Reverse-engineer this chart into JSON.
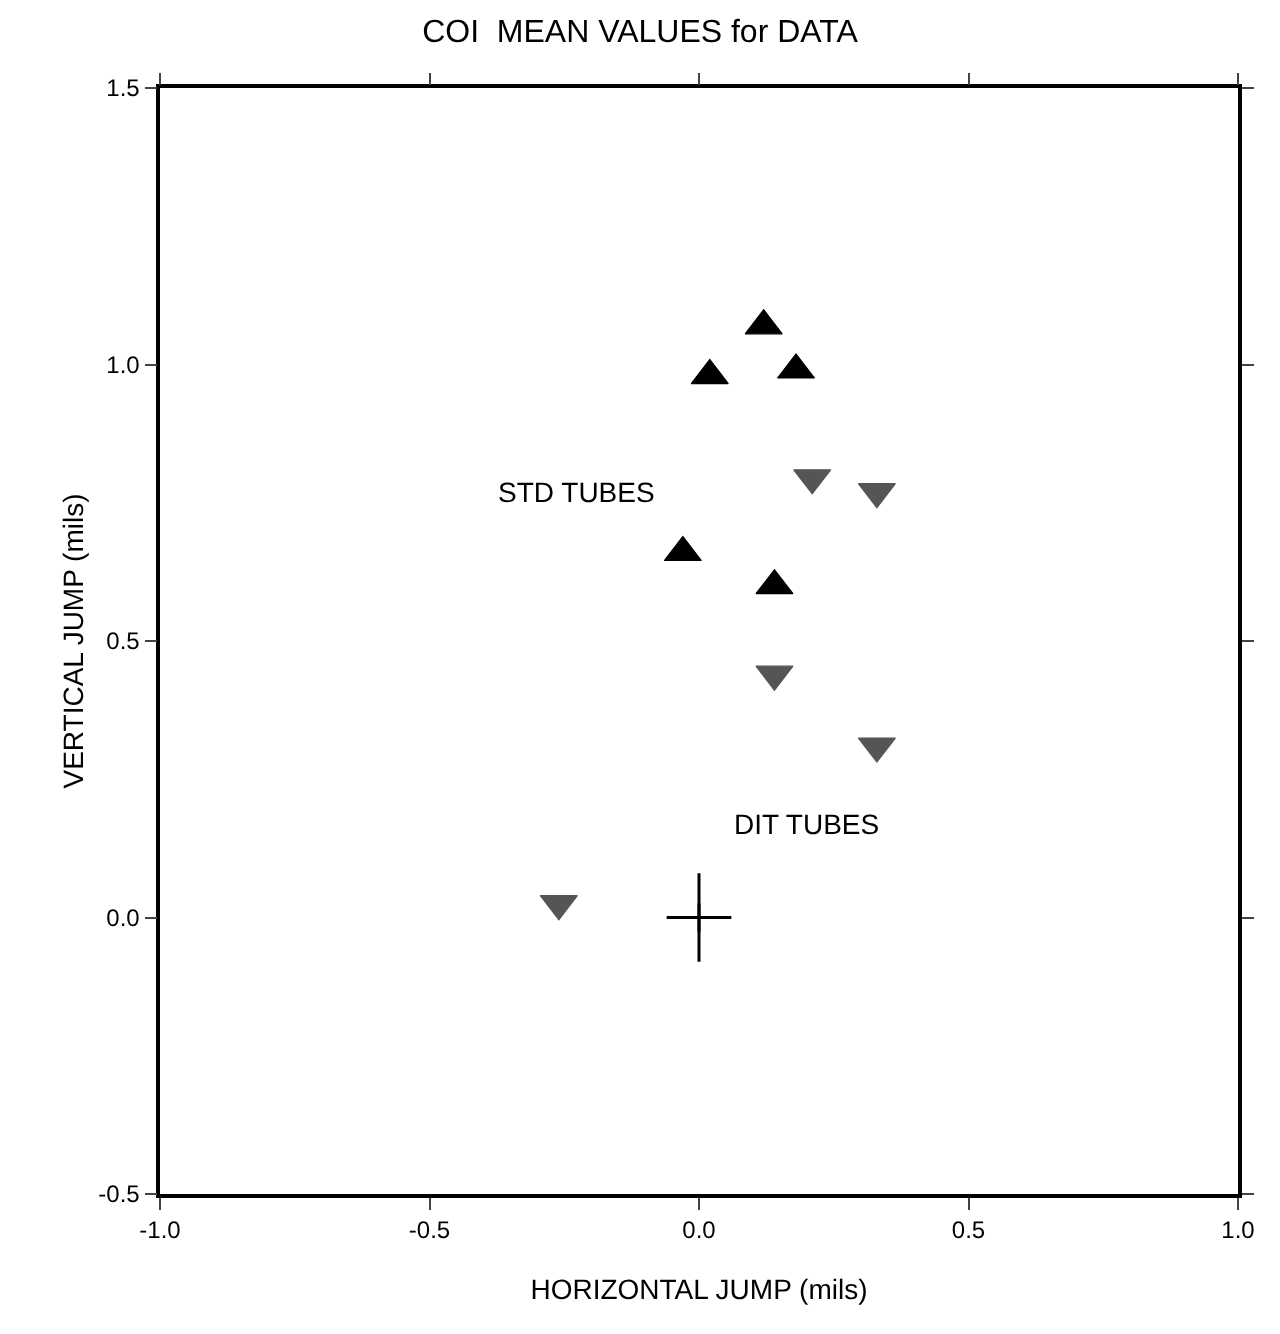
{
  "chart_data": {
    "type": "scatter",
    "title": "COI  MEAN VALUES for DATA",
    "xlabel": "HORIZONTAL JUMP (mils)",
    "ylabel": "VERTICAL JUMP (mils)",
    "xlim": [
      -1,
      1
    ],
    "xticks": [
      {
        "value": -1,
        "label": "-1.0"
      },
      -0.5,
      {
        "value": 0,
        "label": "0.0"
      },
      0.5,
      {
        "value": 1,
        "label": "1.0"
      }
    ],
    "ylim": [
      -0.5,
      1.5
    ],
    "yticks": [
      -0.5,
      {
        "value": 0,
        "label": "0.0"
      },
      0.5,
      {
        "value": 1,
        "label": "1.0"
      },
      1.5
    ],
    "grid": false,
    "series": [
      {
        "color": "#000000",
        "marker": "triangle",
        "x": [
          0.12,
          0.02,
          0.18,
          -0.03,
          0.14
        ],
        "values": [
          1.07,
          0.98,
          0.99,
          0.66,
          0.6
        ]
      },
      {
        "color": "#555555",
        "marker": "triangle-down",
        "x": [
          0.21,
          0.33,
          0.14,
          0.33,
          -0.26
        ],
        "values": [
          0.795,
          0.77,
          0.44,
          0.31,
          0.025
        ]
      },
      {
        "color": "#000000",
        "marker": "cross",
        "x": [
          0
        ],
        "values": [
          0
        ],
        "errors": [
          0.08
        ],
        "xerrors": [
          0.06
        ]
      }
    ],
    "annotations": [
      "STD TUBES",
      "DIT TUBES"
    ]
  }
}
